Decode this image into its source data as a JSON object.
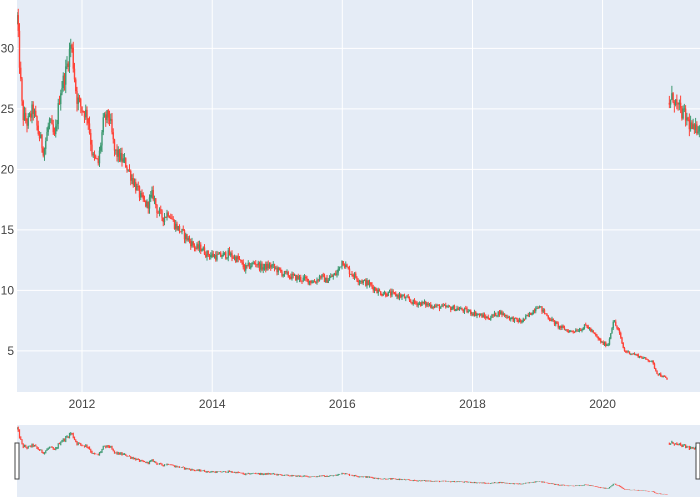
{
  "chart_data": {
    "type": "candlestick",
    "title": "",
    "xlabel": "",
    "ylabel": "",
    "x_range": [
      "2011-01-01",
      "2021-07-01"
    ],
    "ylim": [
      1.6,
      34.0
    ],
    "x_ticks": [
      {
        "date": "2012-01-01",
        "label": "2012"
      },
      {
        "date": "2014-01-01",
        "label": "2014"
      },
      {
        "date": "2016-01-01",
        "label": "2016"
      },
      {
        "date": "2018-01-01",
        "label": "2018"
      },
      {
        "date": "2020-01-01",
        "label": "2020"
      }
    ],
    "y_ticks": [
      {
        "value": 5,
        "label": "5"
      },
      {
        "value": 10,
        "label": "10"
      },
      {
        "value": 15,
        "label": "15"
      },
      {
        "value": 20,
        "label": "20"
      },
      {
        "value": 25,
        "label": "25"
      },
      {
        "value": 30,
        "label": "30"
      }
    ],
    "grid": true,
    "rangeslider": true,
    "increasing_color": "#3D9970",
    "decreasing_color": "#FF4136",
    "series": [
      {
        "points": [
          [
            "2011-01-01",
            32.5
          ],
          [
            "2011-02-01",
            24.5
          ],
          [
            "2011-03-01",
            23.8
          ],
          [
            "2011-04-01",
            25.0
          ],
          [
            "2011-05-01",
            23.0
          ],
          [
            "2011-06-01",
            21.5
          ],
          [
            "2011-07-01",
            24.0
          ],
          [
            "2011-08-01",
            22.5
          ],
          [
            "2011-09-01",
            26.5
          ],
          [
            "2011-10-01",
            28.0
          ],
          [
            "2011-11-01",
            30.5
          ],
          [
            "2011-12-01",
            26.0
          ],
          [
            "2012-01-01",
            25.0
          ],
          [
            "2012-02-01",
            24.5
          ],
          [
            "2012-03-01",
            21.0
          ],
          [
            "2012-04-01",
            20.5
          ],
          [
            "2012-05-01",
            24.0
          ],
          [
            "2012-06-01",
            24.5
          ],
          [
            "2012-07-01",
            21.5
          ],
          [
            "2012-08-01",
            21.0
          ],
          [
            "2012-09-01",
            20.5
          ],
          [
            "2012-10-01",
            19.5
          ],
          [
            "2012-11-01",
            18.5
          ],
          [
            "2012-12-01",
            17.5
          ],
          [
            "2013-01-01",
            17.0
          ],
          [
            "2013-02-01",
            18.0
          ],
          [
            "2013-03-01",
            16.5
          ],
          [
            "2013-04-01",
            16.0
          ],
          [
            "2013-05-01",
            16.5
          ],
          [
            "2013-06-01",
            15.5
          ],
          [
            "2013-07-01",
            15.0
          ],
          [
            "2013-08-01",
            14.5
          ],
          [
            "2013-09-01",
            14.0
          ],
          [
            "2013-10-01",
            13.5
          ],
          [
            "2013-11-01",
            13.5
          ],
          [
            "2013-12-01",
            13.0
          ],
          [
            "2014-01-01",
            12.9
          ],
          [
            "2014-02-01",
            12.8
          ],
          [
            "2014-04-01",
            13.0
          ],
          [
            "2014-06-01",
            12.5
          ],
          [
            "2014-07-01",
            11.8
          ],
          [
            "2014-09-01",
            12.3
          ],
          [
            "2014-10-01",
            11.9
          ],
          [
            "2014-12-01",
            12.0
          ],
          [
            "2015-02-01",
            11.4
          ],
          [
            "2015-04-01",
            11.1
          ],
          [
            "2015-06-01",
            10.9
          ],
          [
            "2015-08-01",
            10.7
          ],
          [
            "2015-09-01",
            11.2
          ],
          [
            "2015-10-01",
            10.8
          ],
          [
            "2015-12-01",
            11.4
          ],
          [
            "2016-01-01",
            12.5
          ],
          [
            "2016-02-01",
            11.7
          ],
          [
            "2016-04-01",
            10.9
          ],
          [
            "2016-06-01",
            10.5
          ],
          [
            "2016-08-01",
            9.8
          ],
          [
            "2016-10-01",
            9.7
          ],
          [
            "2016-12-01",
            9.5
          ],
          [
            "2017-02-01",
            9.0
          ],
          [
            "2017-04-01",
            8.9
          ],
          [
            "2017-06-01",
            8.7
          ],
          [
            "2017-08-01",
            8.6
          ],
          [
            "2017-10-01",
            8.5
          ],
          [
            "2017-12-01",
            8.3
          ],
          [
            "2018-02-01",
            8.0
          ],
          [
            "2018-04-01",
            7.7
          ],
          [
            "2018-06-01",
            8.2
          ],
          [
            "2018-08-01",
            7.7
          ],
          [
            "2018-10-01",
            7.4
          ],
          [
            "2018-12-01",
            8.2
          ],
          [
            "2019-01-01",
            8.8
          ],
          [
            "2019-03-01",
            7.8
          ],
          [
            "2019-05-01",
            7.0
          ],
          [
            "2019-07-01",
            6.6
          ],
          [
            "2019-09-01",
            6.8
          ],
          [
            "2019-10-01",
            7.1
          ],
          [
            "2019-12-01",
            6.1
          ],
          [
            "2020-01-01",
            5.6
          ],
          [
            "2020-02-01",
            5.5
          ],
          [
            "2020-03-01",
            7.5
          ],
          [
            "2020-04-01",
            6.6
          ],
          [
            "2020-05-01",
            5.0
          ],
          [
            "2020-07-01",
            4.7
          ],
          [
            "2020-09-01",
            4.3
          ],
          [
            "2020-10-01",
            4.2
          ],
          [
            "2020-11-01",
            3.2
          ],
          [
            "2021-01-01",
            2.6
          ],
          null,
          [
            "2021-01-10",
            25.5
          ],
          [
            "2021-02-01",
            26.0
          ],
          [
            "2021-03-01",
            25.0
          ],
          [
            "2021-04-01",
            24.5
          ],
          [
            "2021-05-01",
            23.8
          ],
          [
            "2021-06-01",
            23.0
          ],
          [
            "2021-07-01",
            24.0
          ]
        ]
      }
    ]
  }
}
